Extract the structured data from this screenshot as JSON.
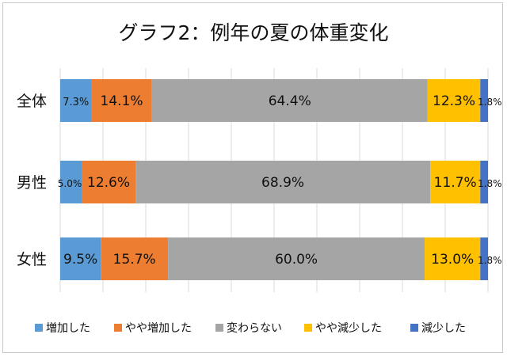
{
  "chart_data": {
    "type": "bar",
    "orientation": "horizontal",
    "stacked": true,
    "normalized": true,
    "title": "グラフ2：例年の夏の体重変化",
    "categories": [
      "全体",
      "男性",
      "女性"
    ],
    "series": [
      {
        "name": "増加した",
        "values": [
          7.3,
          5.0,
          9.5
        ],
        "labels": [
          "7.3%",
          "5.0%",
          "9.5%"
        ],
        "color": "#5b9bd5"
      },
      {
        "name": "やや増加した",
        "values": [
          14.1,
          12.6,
          15.7
        ],
        "labels": [
          "14.1%",
          "12.6%",
          "15.7%"
        ],
        "color": "#ed7d31"
      },
      {
        "name": "変わらない",
        "values": [
          64.4,
          68.9,
          60.0
        ],
        "labels": [
          "64.4%",
          "68.9%",
          "60.0%"
        ],
        "color": "#a5a5a5"
      },
      {
        "name": "やや減少した",
        "values": [
          12.3,
          11.7,
          13.0
        ],
        "labels": [
          "12.3%",
          "11.7%",
          "13.0%"
        ],
        "color": "#ffc000"
      },
      {
        "name": "減少した",
        "values": [
          1.8,
          1.8,
          1.8
        ],
        "labels": [
          "1.8%",
          "1.8%",
          "1.8%"
        ],
        "color": "#4472c4"
      }
    ],
    "xlim": [
      0,
      100
    ],
    "gridlines": "vertical",
    "legend": "bottom"
  }
}
